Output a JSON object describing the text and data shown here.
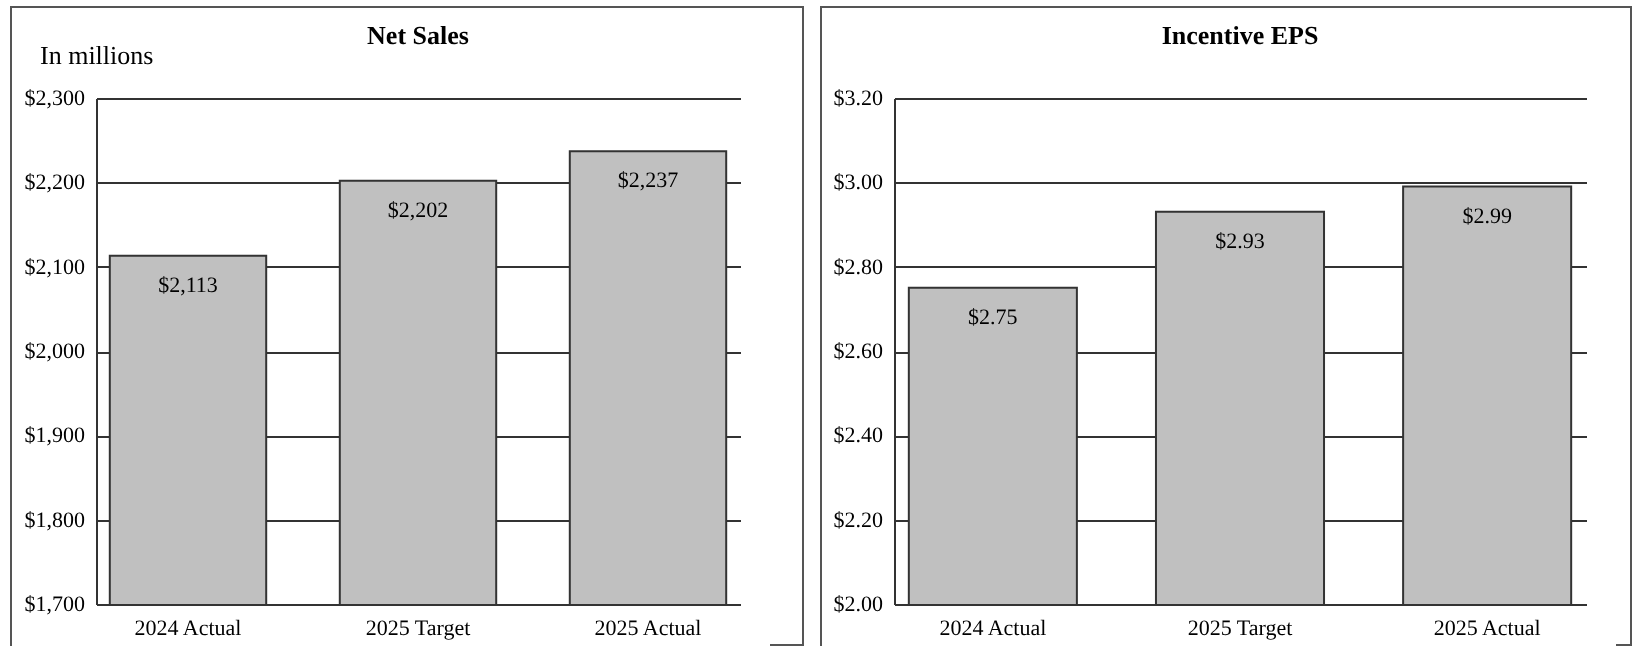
{
  "chart_data": [
    {
      "type": "bar",
      "title": "Net Sales",
      "annotations": [
        "In millions"
      ],
      "categories": [
        "2024 Actual",
        "2025 Target",
        "2025 Actual"
      ],
      "series": [
        {
          "color": "#c0c0c0",
          "values": [
            2113,
            2202,
            2237
          ],
          "value_labels": [
            "$2,113",
            "$2,202",
            "$2,237"
          ]
        }
      ],
      "ylim": [
        1700,
        2300
      ],
      "yticks": [
        {
          "value": 1700,
          "label": "$1,700"
        },
        {
          "value": 1800,
          "label": "$1,800"
        },
        {
          "value": 1900,
          "label": "$1,900"
        },
        {
          "value": 2000,
          "label": "$2,000"
        },
        {
          "value": 2100,
          "label": "$2,100"
        },
        {
          "value": 2200,
          "label": "$2,200"
        },
        {
          "value": 2300,
          "label": "$2,300"
        }
      ],
      "grid": "y",
      "legend": false
    },
    {
      "type": "bar",
      "title": "Incentive EPS",
      "categories": [
        "2024 Actual",
        "2025 Target",
        "2025 Actual"
      ],
      "series": [
        {
          "color": "#c0c0c0",
          "values": [
            2.75,
            2.93,
            2.99
          ],
          "value_labels": [
            "$2.75",
            "$2.93",
            "$2.99"
          ]
        }
      ],
      "ylim": [
        2.0,
        3.2
      ],
      "yticks": [
        {
          "value": 2.0,
          "label": "$2.00"
        },
        {
          "value": 2.2,
          "label": "$2.20"
        },
        {
          "value": 2.4,
          "label": "$2.40"
        },
        {
          "value": 2.6,
          "label": "$2.60"
        },
        {
          "value": 2.8,
          "label": "$2.80"
        },
        {
          "value": 3.0,
          "label": "$3.00"
        },
        {
          "value": 3.2,
          "label": "$3.20"
        }
      ],
      "grid": "y",
      "legend": false
    }
  ]
}
